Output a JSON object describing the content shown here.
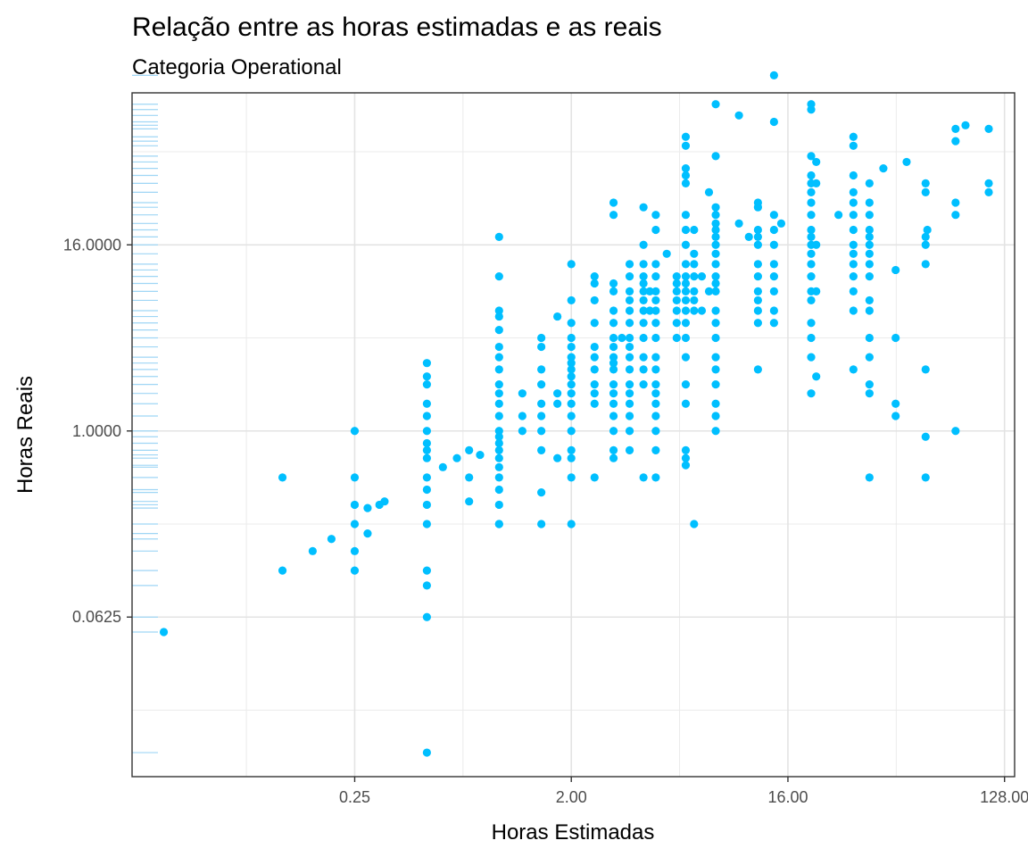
{
  "chart_data": {
    "type": "scatter",
    "title": "Relação entre as horas estimadas e as reais",
    "subtitle": "Categoria Operational",
    "xlabel": "Horas Estimadas",
    "ylabel": "Horas Reais",
    "x_scale": "log2",
    "y_scale": "log2",
    "xlim": [
      0.0295,
      141
    ],
    "ylim": [
      0.0058,
      154
    ],
    "x_ticks": [
      0.25,
      2,
      16,
      128
    ],
    "x_tick_labels": [
      "0.25",
      "2.00",
      "16.00",
      "128.00"
    ],
    "y_ticks": [
      0.0625,
      1,
      16
    ],
    "y_tick_labels": [
      "0.0625",
      "1.0000",
      "16.0000"
    ],
    "grid": true,
    "y_rug": true,
    "point_color": "#00bfff",
    "rug_color": "#9fd6f5",
    "points": [
      [
        0.04,
        0.05
      ],
      [
        0.125,
        0.5
      ],
      [
        0.125,
        0.125
      ],
      [
        0.167,
        0.167
      ],
      [
        0.2,
        0.2
      ],
      [
        0.25,
        1
      ],
      [
        0.25,
        0.5
      ],
      [
        0.25,
        0.333
      ],
      [
        0.25,
        0.25
      ],
      [
        0.25,
        0.167
      ],
      [
        0.25,
        0.125
      ],
      [
        0.283,
        0.217
      ],
      [
        0.283,
        0.317
      ],
      [
        0.317,
        0.333
      ],
      [
        0.333,
        0.35
      ],
      [
        0.5,
        2.75
      ],
      [
        0.5,
        2.25
      ],
      [
        0.5,
        2
      ],
      [
        0.5,
        1.5
      ],
      [
        0.5,
        1.25
      ],
      [
        0.5,
        1
      ],
      [
        0.5,
        0.833
      ],
      [
        0.5,
        0.75
      ],
      [
        0.5,
        0.667
      ],
      [
        0.5,
        0.5
      ],
      [
        0.5,
        0.417
      ],
      [
        0.5,
        0.333
      ],
      [
        0.5,
        0.25
      ],
      [
        0.5,
        0.125
      ],
      [
        0.5,
        0.1
      ],
      [
        0.5,
        0.0625
      ],
      [
        0.5,
        0.0083
      ],
      [
        0.583,
        0.583
      ],
      [
        0.667,
        0.667
      ],
      [
        0.75,
        0.75
      ],
      [
        0.75,
        0.5
      ],
      [
        0.75,
        0.35
      ],
      [
        0.833,
        0.7
      ],
      [
        1,
        18
      ],
      [
        1,
        10
      ],
      [
        1,
        6
      ],
      [
        1,
        5.5
      ],
      [
        1,
        4.5
      ],
      [
        1,
        3.5
      ],
      [
        1,
        3
      ],
      [
        1,
        2.5
      ],
      [
        1,
        2
      ],
      [
        1,
        1.75
      ],
      [
        1,
        1.5
      ],
      [
        1,
        1.25
      ],
      [
        1,
        1
      ],
      [
        1,
        0.917
      ],
      [
        1,
        0.833
      ],
      [
        1,
        0.75
      ],
      [
        1,
        0.667
      ],
      [
        1,
        0.583
      ],
      [
        1,
        0.5
      ],
      [
        1,
        0.417
      ],
      [
        1,
        0.333
      ],
      [
        1,
        0.25
      ],
      [
        1,
        0.25
      ],
      [
        1.25,
        1.75
      ],
      [
        1.25,
        1.25
      ],
      [
        1.25,
        1
      ],
      [
        1.5,
        4
      ],
      [
        1.5,
        3.5
      ],
      [
        1.5,
        2.5
      ],
      [
        1.5,
        2
      ],
      [
        1.5,
        1.5
      ],
      [
        1.5,
        1.25
      ],
      [
        1.5,
        1
      ],
      [
        1.5,
        0.75
      ],
      [
        1.5,
        0.25
      ],
      [
        1.5,
        0.4
      ],
      [
        1.75,
        5.5
      ],
      [
        1.75,
        1.75
      ],
      [
        1.75,
        1.5
      ],
      [
        1.75,
        0.667
      ],
      [
        2,
        12
      ],
      [
        2,
        7
      ],
      [
        2,
        5
      ],
      [
        2,
        4
      ],
      [
        2,
        3.5
      ],
      [
        2,
        3
      ],
      [
        2,
        2.75
      ],
      [
        2,
        2.5
      ],
      [
        2,
        2.25
      ],
      [
        2,
        2
      ],
      [
        2,
        1.75
      ],
      [
        2,
        1.5
      ],
      [
        2,
        1.25
      ],
      [
        2,
        1
      ],
      [
        2,
        0.75
      ],
      [
        2,
        0.667
      ],
      [
        2,
        0.5
      ],
      [
        2,
        0.25
      ],
      [
        2.5,
        10
      ],
      [
        2.5,
        9
      ],
      [
        2.5,
        7
      ],
      [
        2.5,
        5
      ],
      [
        2.5,
        3.5
      ],
      [
        2.5,
        3
      ],
      [
        2.5,
        2.5
      ],
      [
        2.5,
        2
      ],
      [
        2.5,
        1.75
      ],
      [
        2.5,
        1.5
      ],
      [
        2.5,
        0.5
      ],
      [
        3,
        30
      ],
      [
        3,
        25
      ],
      [
        3,
        9
      ],
      [
        3,
        8
      ],
      [
        3,
        6
      ],
      [
        3,
        5
      ],
      [
        3,
        4
      ],
      [
        3,
        3.5
      ],
      [
        3,
        3
      ],
      [
        3,
        2.75
      ],
      [
        3,
        2.5
      ],
      [
        3,
        2
      ],
      [
        3,
        1.75
      ],
      [
        3,
        1.5
      ],
      [
        3,
        1.25
      ],
      [
        3,
        1
      ],
      [
        3,
        0.75
      ],
      [
        3,
        0.667
      ],
      [
        3.25,
        4
      ],
      [
        3.5,
        12
      ],
      [
        3.5,
        10
      ],
      [
        3.5,
        8
      ],
      [
        3.5,
        7
      ],
      [
        3.5,
        6
      ],
      [
        3.5,
        5
      ],
      [
        3.5,
        4
      ],
      [
        3.5,
        3.5
      ],
      [
        3.5,
        3
      ],
      [
        3.5,
        2.5
      ],
      [
        3.5,
        2
      ],
      [
        3.5,
        1.75
      ],
      [
        3.5,
        1.5
      ],
      [
        3.5,
        1.25
      ],
      [
        3.5,
        1
      ],
      [
        3.5,
        0.75
      ],
      [
        4,
        28
      ],
      [
        4,
        16
      ],
      [
        4,
        12
      ],
      [
        4,
        10
      ],
      [
        4,
        9
      ],
      [
        4,
        8
      ],
      [
        4,
        7
      ],
      [
        4,
        6
      ],
      [
        4,
        5
      ],
      [
        4,
        4
      ],
      [
        4,
        3
      ],
      [
        4,
        2.5
      ],
      [
        4,
        2
      ],
      [
        4,
        0.5
      ],
      [
        4.25,
        8
      ],
      [
        4.25,
        6
      ],
      [
        4.5,
        25
      ],
      [
        4.5,
        20
      ],
      [
        4.5,
        12
      ],
      [
        4.5,
        10
      ],
      [
        4.5,
        8
      ],
      [
        4.5,
        7
      ],
      [
        4.5,
        6
      ],
      [
        4.5,
        5
      ],
      [
        4.5,
        4
      ],
      [
        4.5,
        3
      ],
      [
        4.5,
        2.5
      ],
      [
        4.5,
        2
      ],
      [
        4.5,
        1.75
      ],
      [
        4.5,
        1.5
      ],
      [
        4.5,
        1.25
      ],
      [
        4.5,
        1
      ],
      [
        4.5,
        0.75
      ],
      [
        4.5,
        0.5
      ],
      [
        5,
        14
      ],
      [
        5.5,
        10
      ],
      [
        5.5,
        9
      ],
      [
        5.5,
        8
      ],
      [
        5.5,
        7
      ],
      [
        5.5,
        6
      ],
      [
        5.5,
        5
      ],
      [
        5.5,
        4
      ],
      [
        6,
        80
      ],
      [
        6,
        70
      ],
      [
        6,
        50
      ],
      [
        6,
        45
      ],
      [
        6,
        40
      ],
      [
        6,
        25
      ],
      [
        6,
        20
      ],
      [
        6,
        16
      ],
      [
        6,
        12
      ],
      [
        6,
        10
      ],
      [
        6,
        9
      ],
      [
        6,
        8
      ],
      [
        6,
        7
      ],
      [
        6,
        6
      ],
      [
        6,
        5
      ],
      [
        6,
        4
      ],
      [
        6,
        3
      ],
      [
        6,
        2
      ],
      [
        6,
        1.5
      ],
      [
        6,
        0.75
      ],
      [
        6,
        0.667
      ],
      [
        6,
        0.6
      ],
      [
        6.5,
        20
      ],
      [
        6.5,
        14
      ],
      [
        6.5,
        12
      ],
      [
        6.5,
        10
      ],
      [
        6.5,
        8
      ],
      [
        6.5,
        7
      ],
      [
        6.5,
        6
      ],
      [
        6.5,
        0.25
      ],
      [
        7,
        6
      ],
      [
        7,
        10
      ],
      [
        7.5,
        35
      ],
      [
        7.5,
        8
      ],
      [
        8,
        130
      ],
      [
        8,
        60
      ],
      [
        8,
        28
      ],
      [
        8,
        25
      ],
      [
        8,
        22
      ],
      [
        8,
        20
      ],
      [
        8,
        18
      ],
      [
        8,
        16
      ],
      [
        8,
        14
      ],
      [
        8,
        12
      ],
      [
        8,
        10
      ],
      [
        8,
        9
      ],
      [
        8,
        8
      ],
      [
        8,
        6
      ],
      [
        8,
        5
      ],
      [
        8,
        4
      ],
      [
        8,
        3
      ],
      [
        8,
        2.5
      ],
      [
        8,
        2
      ],
      [
        8,
        1.5
      ],
      [
        8,
        1.25
      ],
      [
        8,
        1
      ],
      [
        10,
        110
      ],
      [
        10,
        22
      ],
      [
        11,
        18
      ],
      [
        12,
        30
      ],
      [
        12,
        28
      ],
      [
        12,
        20
      ],
      [
        12,
        18
      ],
      [
        12,
        16
      ],
      [
        12,
        12
      ],
      [
        12,
        10
      ],
      [
        12,
        8
      ],
      [
        12,
        7
      ],
      [
        12,
        6
      ],
      [
        12,
        5
      ],
      [
        12,
        2.5
      ],
      [
        14,
        200
      ],
      [
        14,
        100
      ],
      [
        14,
        25
      ],
      [
        14,
        20
      ],
      [
        14,
        16
      ],
      [
        14,
        12
      ],
      [
        14,
        10
      ],
      [
        14,
        8
      ],
      [
        14,
        6
      ],
      [
        14,
        5
      ],
      [
        15,
        22
      ],
      [
        20,
        130
      ],
      [
        20,
        120
      ],
      [
        20,
        60
      ],
      [
        20,
        45
      ],
      [
        20,
        40
      ],
      [
        20,
        35
      ],
      [
        20,
        30
      ],
      [
        20,
        25
      ],
      [
        20,
        20
      ],
      [
        20,
        18
      ],
      [
        20,
        16
      ],
      [
        20,
        14
      ],
      [
        20,
        12
      ],
      [
        20,
        10
      ],
      [
        20,
        8
      ],
      [
        20,
        7
      ],
      [
        20,
        5
      ],
      [
        20,
        4
      ],
      [
        20,
        3
      ],
      [
        20,
        1.75
      ],
      [
        21,
        55
      ],
      [
        21,
        40
      ],
      [
        21,
        16
      ],
      [
        21,
        8
      ],
      [
        21,
        2.25
      ],
      [
        26,
        25
      ],
      [
        30,
        80
      ],
      [
        30,
        70
      ],
      [
        30,
        45
      ],
      [
        30,
        35
      ],
      [
        30,
        30
      ],
      [
        30,
        25
      ],
      [
        30,
        20
      ],
      [
        30,
        16
      ],
      [
        30,
        14
      ],
      [
        30,
        12
      ],
      [
        30,
        10
      ],
      [
        30,
        8
      ],
      [
        30,
        6
      ],
      [
        30,
        2.5
      ],
      [
        35,
        40
      ],
      [
        35,
        30
      ],
      [
        35,
        25
      ],
      [
        35,
        20
      ],
      [
        35,
        18
      ],
      [
        35,
        16
      ],
      [
        35,
        14
      ],
      [
        35,
        12
      ],
      [
        35,
        10
      ],
      [
        35,
        7
      ],
      [
        35,
        6
      ],
      [
        35,
        4
      ],
      [
        35,
        3
      ],
      [
        35,
        2
      ],
      [
        35,
        1.75
      ],
      [
        35,
        0.5
      ],
      [
        40,
        50
      ],
      [
        45,
        11
      ],
      [
        45,
        4
      ],
      [
        45,
        1.5
      ],
      [
        45,
        1.25
      ],
      [
        50,
        55
      ],
      [
        60,
        40
      ],
      [
        60,
        35
      ],
      [
        60,
        18
      ],
      [
        60,
        16
      ],
      [
        60,
        12
      ],
      [
        60,
        2.5
      ],
      [
        60,
        0.917
      ],
      [
        60,
        0.5
      ],
      [
        61,
        20
      ],
      [
        80,
        90
      ],
      [
        80,
        75
      ],
      [
        80,
        30
      ],
      [
        80,
        25
      ],
      [
        80,
        1
      ],
      [
        88,
        95
      ],
      [
        110,
        90
      ],
      [
        110,
        40
      ],
      [
        110,
        35
      ]
    ]
  }
}
